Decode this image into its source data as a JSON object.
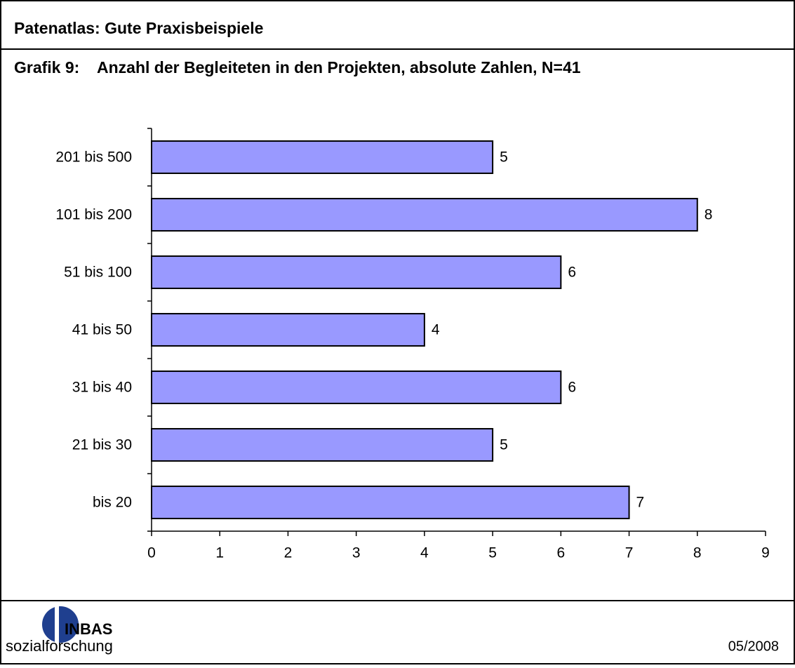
{
  "header": {
    "title": "Patenatlas: Gute Praxisbeispiele"
  },
  "chart_data": {
    "type": "hbar",
    "title": "Grafik 9:    Anzahl der Begleiteten in den Projekten, absolute Zahlen, N=41",
    "categories": [
      "bis 20",
      "21 bis 30",
      "31 bis 40",
      "41 bis 50",
      "51 bis 100",
      "101 bis 200",
      "201 bis 500"
    ],
    "values": [
      7,
      5,
      6,
      4,
      6,
      8,
      5
    ],
    "color": "#9999ff",
    "xlim": [
      0,
      9
    ],
    "xticks": [
      0,
      1,
      2,
      3,
      4,
      5,
      6,
      7,
      8,
      9
    ],
    "grid": false
  },
  "footer": {
    "logo_top": "INBAS",
    "logo_bottom": "sozialforschung",
    "date": "05/2008"
  }
}
